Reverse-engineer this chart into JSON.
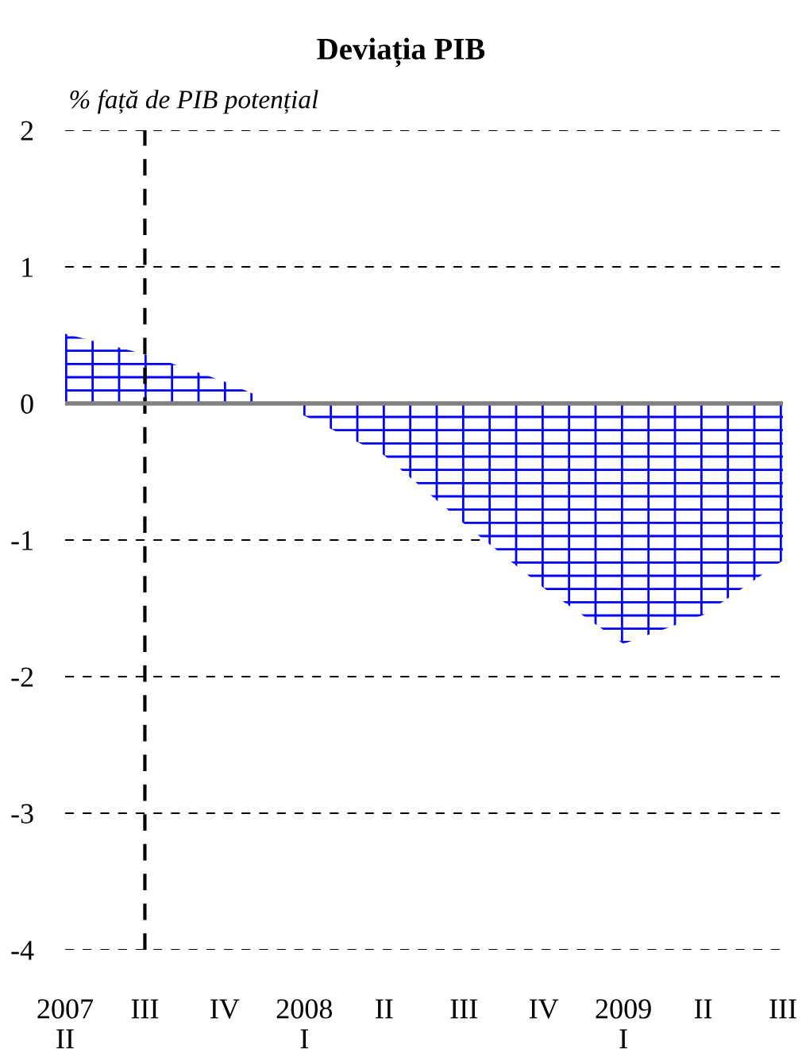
{
  "chart_data": {
    "type": "area",
    "title": "Deviația PIB",
    "ylabel": "% față de PIB potențial",
    "categories": [
      "2007\nII",
      "III",
      "IV",
      "2008\nI",
      "II",
      "III",
      "IV",
      "2009\nI",
      "II",
      "III"
    ],
    "series": [
      {
        "color": "#0000ff",
        "values": [
          0.51,
          0.36,
          0.16,
          -0.09,
          -0.38,
          -0.88,
          -1.35,
          -1.76,
          -1.55,
          -1.15
        ]
      }
    ],
    "ylim": [
      -4,
      2
    ],
    "yticks": [
      -4,
      -3,
      -2,
      -1,
      0,
      1,
      2
    ],
    "grid": "y",
    "ref_lines": [
      {
        "axis": "x",
        "value": "III",
        "color": "#000000",
        "line_style": "dashed"
      },
      {
        "axis": "y",
        "value": 0,
        "color": "#808080",
        "line_style": "solid"
      }
    ]
  }
}
